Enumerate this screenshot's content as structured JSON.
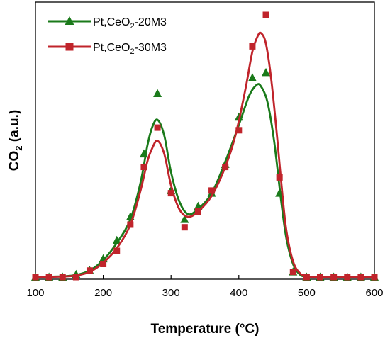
{
  "chart_data": {
    "type": "line",
    "xlabel": "Temperature (°C)",
    "ylabel_main": "CO",
    "ylabel_sub": "2",
    "ylabel_tail": " (a.u.)",
    "xlim": [
      100,
      600
    ],
    "ylim": [
      0,
      100
    ],
    "xticks": [
      100,
      200,
      300,
      400,
      500,
      600
    ],
    "grid": false,
    "legend_position": "top-left",
    "series": [
      {
        "name_main": "Pt,CeO",
        "name_sub": "2",
        "name_tail": "-20M3",
        "color": "#1a7a1a",
        "marker": "triangle",
        "points": [
          [
            100,
            0
          ],
          [
            120,
            0
          ],
          [
            140,
            0
          ],
          [
            160,
            1
          ],
          [
            180,
            2.5
          ],
          [
            200,
            7
          ],
          [
            220,
            14
          ],
          [
            240,
            23
          ],
          [
            260,
            47
          ],
          [
            280,
            70
          ],
          [
            300,
            33
          ],
          [
            320,
            22
          ],
          [
            340,
            27
          ],
          [
            360,
            32
          ],
          [
            380,
            43
          ],
          [
            400,
            61
          ],
          [
            420,
            76
          ],
          [
            440,
            78
          ],
          [
            460,
            32
          ],
          [
            480,
            2
          ],
          [
            500,
            0
          ],
          [
            520,
            0
          ],
          [
            540,
            0
          ],
          [
            560,
            0
          ],
          [
            580,
            0
          ],
          [
            600,
            0
          ]
        ],
        "curve": [
          [
            100,
            0
          ],
          [
            140,
            0.3
          ],
          [
            160,
            0.8
          ],
          [
            180,
            2.5
          ],
          [
            200,
            6.5
          ],
          [
            220,
            13
          ],
          [
            240,
            22
          ],
          [
            255,
            36
          ],
          [
            265,
            50
          ],
          [
            272,
            57
          ],
          [
            280,
            60
          ],
          [
            290,
            54
          ],
          [
            300,
            40
          ],
          [
            312,
            29
          ],
          [
            325,
            24
          ],
          [
            340,
            26
          ],
          [
            360,
            32
          ],
          [
            380,
            44
          ],
          [
            400,
            58
          ],
          [
            415,
            69
          ],
          [
            425,
            73
          ],
          [
            432,
            73
          ],
          [
            442,
            67
          ],
          [
            452,
            52
          ],
          [
            462,
            30
          ],
          [
            470,
            15
          ],
          [
            480,
            5
          ],
          [
            490,
            1
          ],
          [
            500,
            0.2
          ],
          [
            520,
            0
          ],
          [
            600,
            0
          ]
        ]
      },
      {
        "name_main": "Pt,CeO",
        "name_sub": "2",
        "name_tail": "-30M3",
        "color": "#c0242b",
        "marker": "square",
        "points": [
          [
            100,
            0
          ],
          [
            120,
            0
          ],
          [
            140,
            0
          ],
          [
            160,
            0
          ],
          [
            180,
            2.5
          ],
          [
            200,
            5
          ],
          [
            220,
            10
          ],
          [
            240,
            20
          ],
          [
            260,
            42
          ],
          [
            280,
            57
          ],
          [
            300,
            32
          ],
          [
            320,
            19
          ],
          [
            340,
            25
          ],
          [
            360,
            33
          ],
          [
            380,
            42
          ],
          [
            400,
            56
          ],
          [
            420,
            88
          ],
          [
            440,
            100
          ],
          [
            460,
            38
          ],
          [
            480,
            2
          ],
          [
            500,
            0
          ],
          [
            520,
            0
          ],
          [
            540,
            0
          ],
          [
            560,
            0
          ],
          [
            580,
            0
          ],
          [
            600,
            0
          ]
        ],
        "curve": [
          [
            100,
            0
          ],
          [
            140,
            0.2
          ],
          [
            160,
            0.6
          ],
          [
            180,
            2
          ],
          [
            200,
            5.5
          ],
          [
            220,
            11
          ],
          [
            240,
            20
          ],
          [
            255,
            33
          ],
          [
            265,
            44
          ],
          [
            272,
            49
          ],
          [
            280,
            52
          ],
          [
            290,
            47
          ],
          [
            300,
            35
          ],
          [
            312,
            26
          ],
          [
            325,
            23
          ],
          [
            340,
            25
          ],
          [
            360,
            31
          ],
          [
            380,
            42
          ],
          [
            395,
            54
          ],
          [
            410,
            72
          ],
          [
            420,
            86
          ],
          [
            428,
            92
          ],
          [
            433,
            93
          ],
          [
            440,
            89
          ],
          [
            448,
            75
          ],
          [
            457,
            52
          ],
          [
            463,
            35
          ],
          [
            470,
            18
          ],
          [
            480,
            6
          ],
          [
            490,
            1.5
          ],
          [
            500,
            0.3
          ],
          [
            520,
            0
          ],
          [
            600,
            0
          ]
        ]
      }
    ]
  }
}
